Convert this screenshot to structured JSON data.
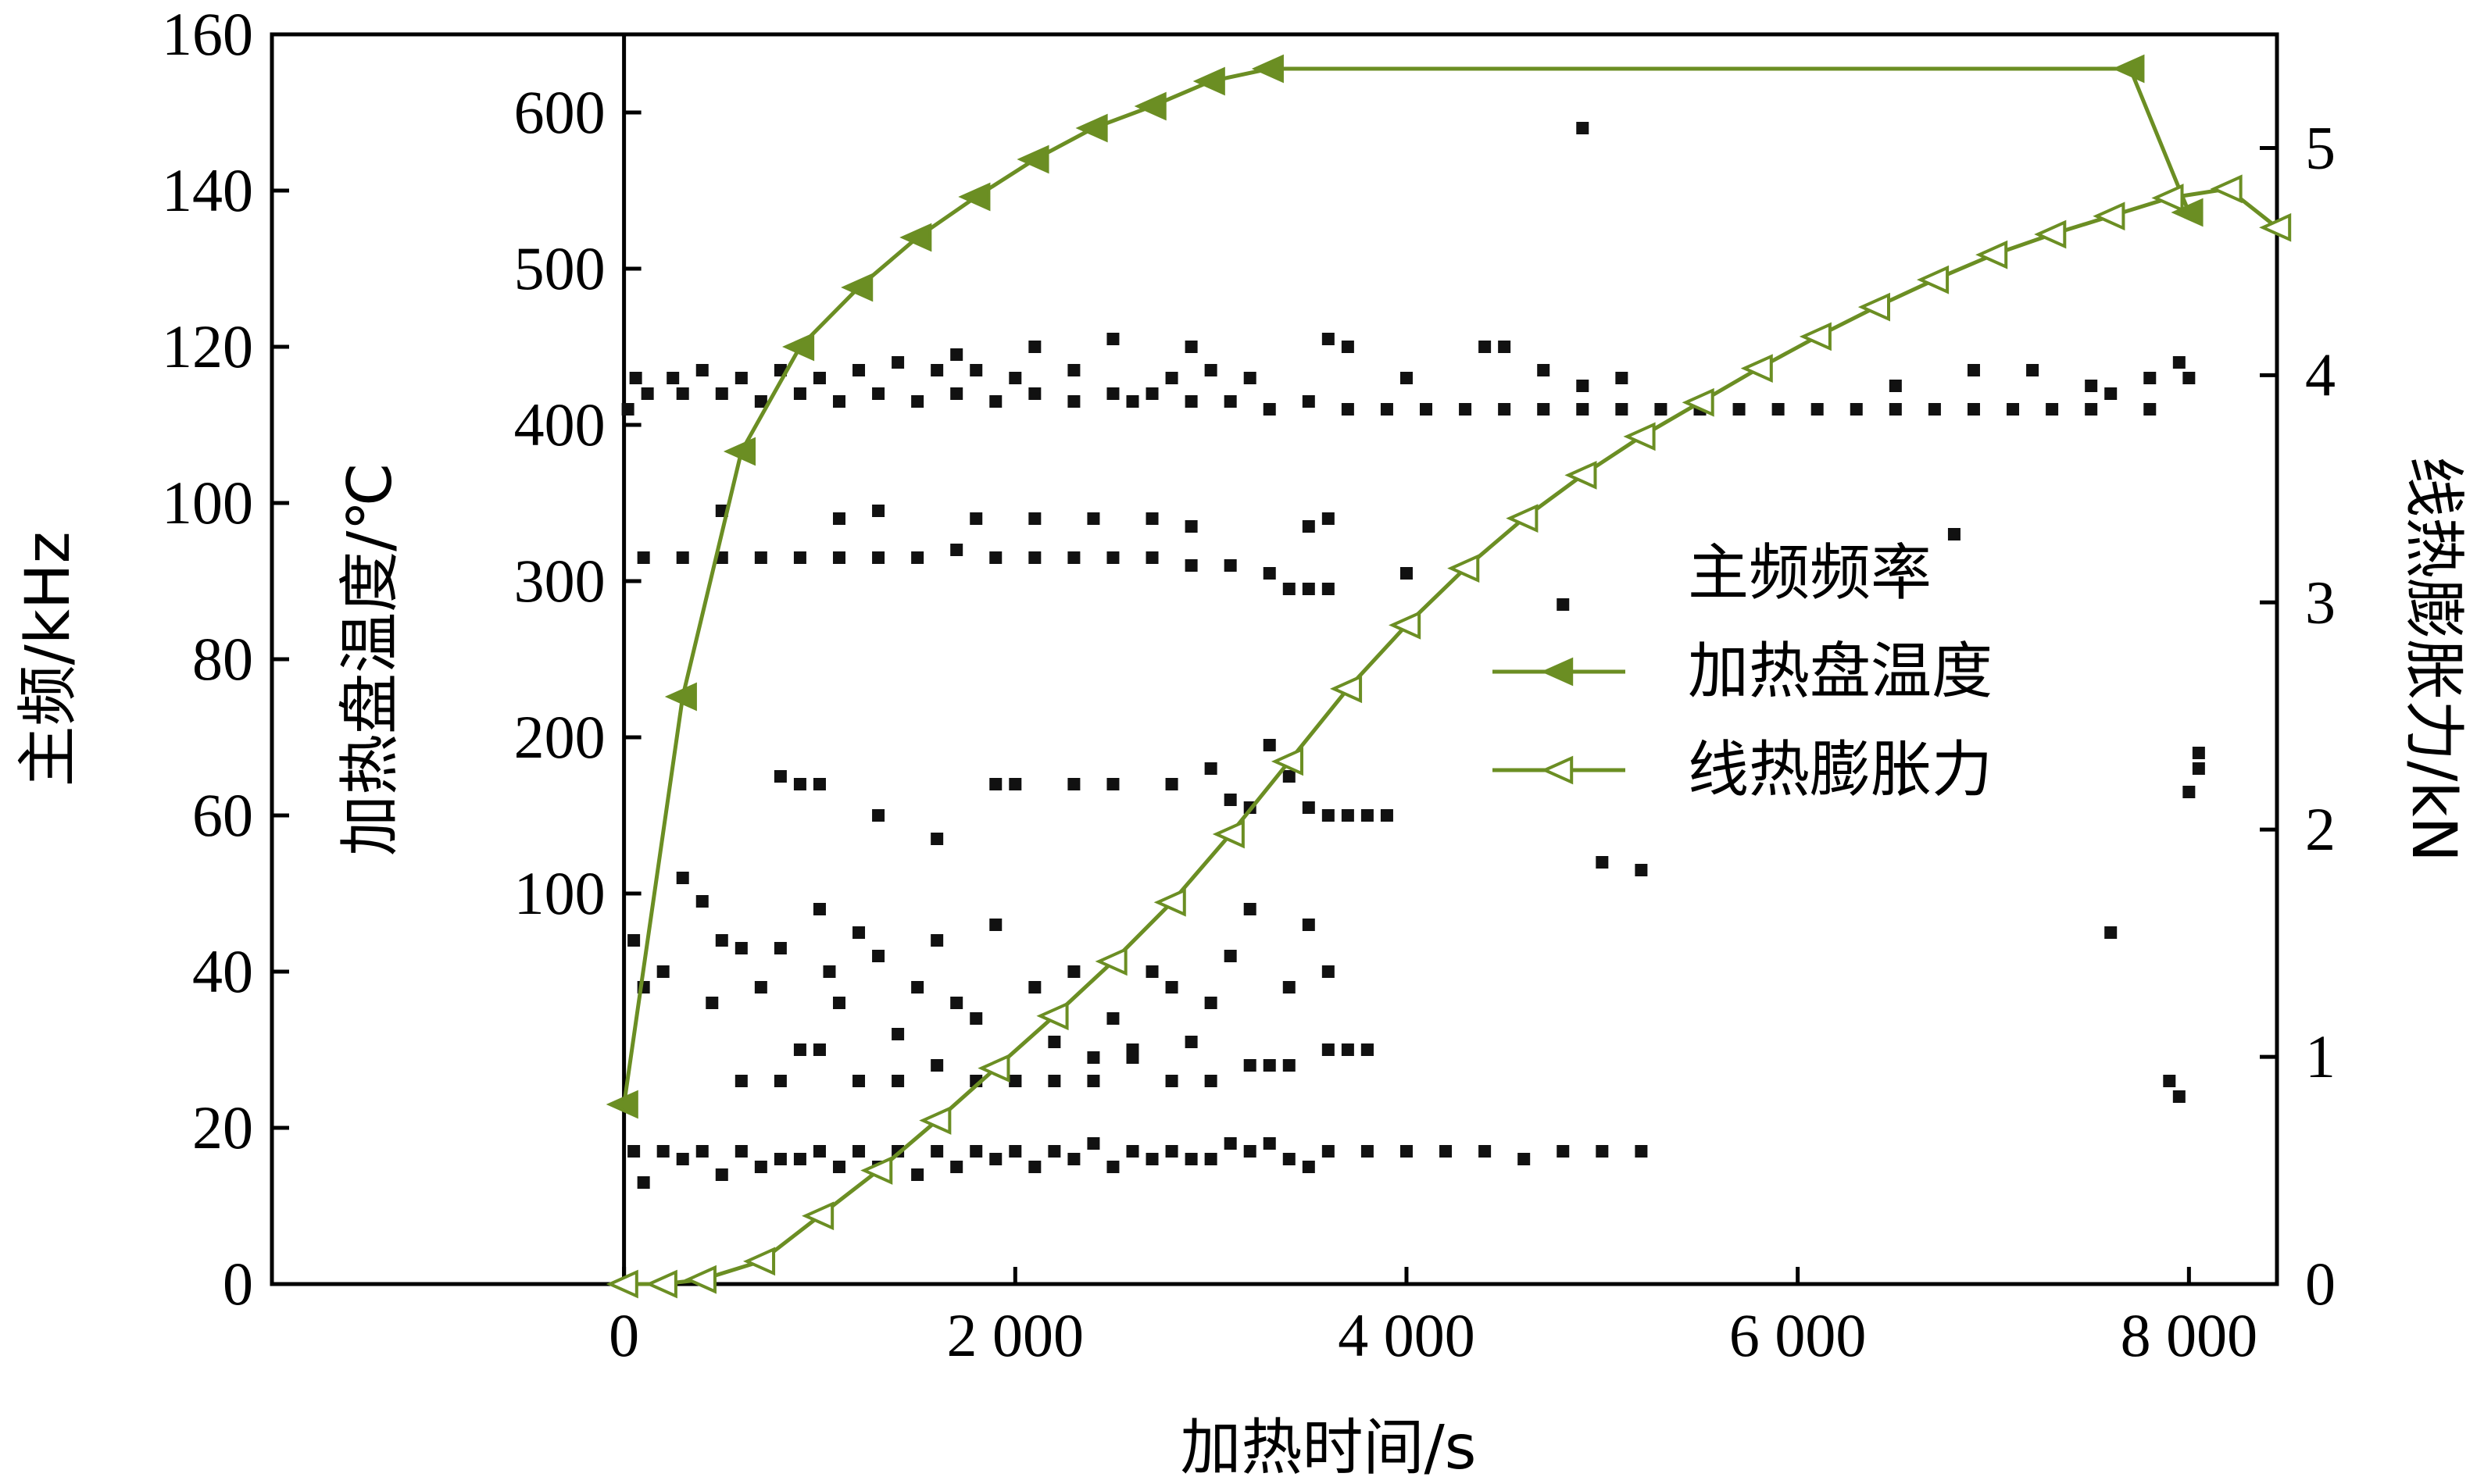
{
  "chart_data": {
    "type": "scatter",
    "title": "",
    "xlabel": "加热时间/s",
    "ylabel_left_outer": "主频/kHz",
    "ylabel_left_inner": "加热盘温度/℃",
    "ylabel_right": "线热膨胀力/kN",
    "x_range": [
      -1800,
      8450
    ],
    "y_left_outer_range": [
      0,
      160
    ],
    "y_left_inner_range": [
      -150,
      650
    ],
    "y_right_range": [
      0,
      5.5
    ],
    "x_ticks": [
      "0",
      "2 000",
      "4 000",
      "6 000",
      "8 000"
    ],
    "x_tick_values": [
      0,
      2000,
      4000,
      6000,
      8000
    ],
    "y_left_outer_ticks": [
      "0",
      "20",
      "40",
      "60",
      "80",
      "100",
      "120",
      "140",
      "160"
    ],
    "y_left_outer_tick_values": [
      0,
      20,
      40,
      60,
      80,
      100,
      120,
      140,
      160
    ],
    "y_left_inner_ticks": [
      "100",
      "200",
      "300",
      "400",
      "500",
      "600"
    ],
    "y_left_inner_tick_values": [
      100,
      200,
      300,
      400,
      500,
      600
    ],
    "y_right_ticks": [
      "0",
      "1",
      "2",
      "3",
      "4",
      "5"
    ],
    "y_right_tick_values": [
      0,
      1,
      2,
      3,
      4,
      5
    ],
    "grid": false,
    "legend_position": "center-right",
    "colors": {
      "series": "#6b8e23",
      "scatter": "#111111",
      "axis": "#000000"
    },
    "series": [
      {
        "name": "主频频率",
        "kind": "scatter",
        "axis": "left_outer",
        "points": [
          [
            20,
            112
          ],
          [
            120,
            114
          ],
          [
            300,
            114
          ],
          [
            500,
            114
          ],
          [
            700,
            113
          ],
          [
            900,
            114
          ],
          [
            1100,
            113
          ],
          [
            1300,
            114
          ],
          [
            1500,
            113
          ],
          [
            1700,
            114
          ],
          [
            1900,
            113
          ],
          [
            2100,
            114
          ],
          [
            2300,
            113
          ],
          [
            2500,
            114
          ],
          [
            2600,
            113
          ],
          [
            2700,
            114
          ],
          [
            2900,
            113
          ],
          [
            3100,
            113
          ],
          [
            3300,
            112
          ],
          [
            3500,
            113
          ],
          [
            3700,
            112
          ],
          [
            3900,
            112
          ],
          [
            4100,
            112
          ],
          [
            4300,
            112
          ],
          [
            4500,
            112
          ],
          [
            4700,
            112
          ],
          [
            4900,
            112
          ],
          [
            5100,
            112
          ],
          [
            5300,
            112
          ],
          [
            5500,
            112
          ],
          [
            5700,
            112
          ],
          [
            5900,
            112
          ],
          [
            6100,
            112
          ],
          [
            6300,
            112
          ],
          [
            6500,
            112
          ],
          [
            6700,
            112
          ],
          [
            6900,
            112
          ],
          [
            7100,
            112
          ],
          [
            7300,
            112
          ],
          [
            7500,
            112
          ],
          [
            7800,
            112
          ],
          [
            60,
            116
          ],
          [
            250,
            116
          ],
          [
            400,
            117
          ],
          [
            600,
            116
          ],
          [
            800,
            117
          ],
          [
            1000,
            116
          ],
          [
            1200,
            117
          ],
          [
            1400,
            118
          ],
          [
            1600,
            117
          ],
          [
            1700,
            119
          ],
          [
            1800,
            117
          ],
          [
            2000,
            116
          ],
          [
            2100,
            120
          ],
          [
            2300,
            117
          ],
          [
            2500,
            121
          ],
          [
            2800,
            116
          ],
          [
            2900,
            120
          ],
          [
            3000,
            117
          ],
          [
            3200,
            116
          ],
          [
            3600,
            121
          ],
          [
            3700,
            120
          ],
          [
            4000,
            116
          ],
          [
            4400,
            120
          ],
          [
            4500,
            120
          ],
          [
            4700,
            117
          ],
          [
            4900,
            115
          ],
          [
            5100,
            116
          ],
          [
            6500,
            115
          ],
          [
            6900,
            117
          ],
          [
            7200,
            117
          ],
          [
            7500,
            115
          ],
          [
            7600,
            114
          ],
          [
            7800,
            116
          ],
          [
            8000,
            116
          ],
          [
            100,
            93
          ],
          [
            300,
            93
          ],
          [
            500,
            93
          ],
          [
            700,
            93
          ],
          [
            900,
            93
          ],
          [
            1100,
            93
          ],
          [
            1300,
            93
          ],
          [
            1500,
            93
          ],
          [
            1700,
            94
          ],
          [
            1900,
            93
          ],
          [
            2100,
            93
          ],
          [
            2300,
            93
          ],
          [
            2500,
            93
          ],
          [
            2700,
            93
          ],
          [
            2900,
            92
          ],
          [
            3100,
            92
          ],
          [
            3300,
            91
          ],
          [
            3400,
            89
          ],
          [
            3500,
            89
          ],
          [
            3600,
            89
          ],
          [
            500,
            99
          ],
          [
            1100,
            98
          ],
          [
            1300,
            99
          ],
          [
            1800,
            98
          ],
          [
            2100,
            98
          ],
          [
            2400,
            98
          ],
          [
            2700,
            98
          ],
          [
            2900,
            97
          ],
          [
            3500,
            97
          ],
          [
            3600,
            98
          ],
          [
            4000,
            91
          ],
          [
            4800,
            87
          ],
          [
            6800,
            96
          ],
          [
            50,
            17
          ],
          [
            200,
            17
          ],
          [
            400,
            17
          ],
          [
            600,
            17
          ],
          [
            800,
            16
          ],
          [
            1000,
            17
          ],
          [
            1200,
            17
          ],
          [
            1400,
            17
          ],
          [
            1600,
            17
          ],
          [
            1800,
            17
          ],
          [
            2000,
            17
          ],
          [
            2200,
            17
          ],
          [
            2400,
            18
          ],
          [
            2600,
            17
          ],
          [
            2800,
            17
          ],
          [
            3000,
            16
          ],
          [
            3200,
            17
          ],
          [
            3400,
            16
          ],
          [
            3600,
            17
          ],
          [
            3800,
            17
          ],
          [
            4000,
            17
          ],
          [
            4200,
            17
          ],
          [
            4400,
            17
          ],
          [
            4600,
            16
          ],
          [
            4800,
            17
          ],
          [
            5000,
            17
          ],
          [
            5200,
            17
          ],
          [
            100,
            13
          ],
          [
            300,
            16
          ],
          [
            500,
            14
          ],
          [
            700,
            15
          ],
          [
            900,
            16
          ],
          [
            1100,
            15
          ],
          [
            1300,
            15
          ],
          [
            1500,
            14
          ],
          [
            1700,
            15
          ],
          [
            1900,
            16
          ],
          [
            2100,
            15
          ],
          [
            2300,
            16
          ],
          [
            2500,
            15
          ],
          [
            2700,
            16
          ],
          [
            2900,
            16
          ],
          [
            3100,
            18
          ],
          [
            3300,
            18
          ],
          [
            3500,
            15
          ],
          [
            50,
            44
          ],
          [
            100,
            38
          ],
          [
            200,
            40
          ],
          [
            300,
            52
          ],
          [
            400,
            49
          ],
          [
            450,
            36
          ],
          [
            500,
            44
          ],
          [
            600,
            43
          ],
          [
            700,
            38
          ],
          [
            800,
            43
          ],
          [
            900,
            30
          ],
          [
            1000,
            48
          ],
          [
            1050,
            40
          ],
          [
            1100,
            36
          ],
          [
            1200,
            45
          ],
          [
            1300,
            42
          ],
          [
            1400,
            32
          ],
          [
            1500,
            38
          ],
          [
            1600,
            44
          ],
          [
            1700,
            36
          ],
          [
            1800,
            34
          ],
          [
            1900,
            46
          ],
          [
            2000,
            26
          ],
          [
            2100,
            38
          ],
          [
            2200,
            31
          ],
          [
            2300,
            40
          ],
          [
            2400,
            29
          ],
          [
            2500,
            34
          ],
          [
            2600,
            30
          ],
          [
            2700,
            40
          ],
          [
            2800,
            38
          ],
          [
            2900,
            31
          ],
          [
            3000,
            36
          ],
          [
            3100,
            42
          ],
          [
            3200,
            48
          ],
          [
            3300,
            28
          ],
          [
            3400,
            38
          ],
          [
            3500,
            46
          ],
          [
            3600,
            40
          ],
          [
            3700,
            30
          ],
          [
            3800,
            30
          ],
          [
            800,
            65
          ],
          [
            900,
            64
          ],
          [
            1000,
            64
          ],
          [
            1300,
            60
          ],
          [
            1600,
            57
          ],
          [
            1900,
            64
          ],
          [
            2000,
            64
          ],
          [
            2300,
            64
          ],
          [
            2500,
            64
          ],
          [
            2800,
            64
          ],
          [
            3000,
            66
          ],
          [
            3100,
            62
          ],
          [
            3200,
            61
          ],
          [
            3300,
            69
          ],
          [
            3400,
            65
          ],
          [
            3500,
            61
          ],
          [
            3600,
            60
          ],
          [
            3700,
            60
          ],
          [
            3800,
            60
          ],
          [
            3900,
            60
          ],
          [
            5000,
            54
          ],
          [
            5200,
            53
          ],
          [
            8000,
            63
          ],
          [
            8050,
            66
          ],
          [
            600,
            26
          ],
          [
            800,
            26
          ],
          [
            1000,
            30
          ],
          [
            1200,
            26
          ],
          [
            1400,
            26
          ],
          [
            1600,
            28
          ],
          [
            1800,
            26
          ],
          [
            2000,
            26
          ],
          [
            2200,
            26
          ],
          [
            2400,
            26
          ],
          [
            2600,
            29
          ],
          [
            2800,
            26
          ],
          [
            3000,
            26
          ],
          [
            3200,
            28
          ],
          [
            3400,
            28
          ],
          [
            3600,
            30
          ],
          [
            3800,
            30
          ],
          [
            7600,
            45
          ],
          [
            7900,
            26
          ],
          [
            7950,
            24
          ],
          [
            8050,
            68
          ],
          [
            4900,
            148
          ],
          [
            7950,
            118
          ]
        ]
      },
      {
        "name": "加热盘温度",
        "kind": "line",
        "marker": "filled-triangle-left",
        "axis": "left_inner",
        "x": [
          0,
          300,
          600,
          900,
          1200,
          1500,
          1800,
          2100,
          2400,
          2700,
          3000,
          3300,
          7700,
          8000
        ],
        "y": [
          -35,
          226,
          383,
          450,
          488,
          520,
          546,
          570,
          590,
          604,
          620,
          628,
          628,
          536
        ]
      },
      {
        "name": "线热膨胀力",
        "kind": "line",
        "marker": "hollow-triangle-left",
        "axis": "right",
        "x": [
          0,
          200,
          400,
          700,
          1000,
          1300,
          1600,
          1900,
          2200,
          2500,
          2800,
          3100,
          3400,
          3700,
          4000,
          4300,
          4600,
          4900,
          5200,
          5500,
          5800,
          6100,
          6400,
          6700,
          7000,
          7300,
          7600,
          7900,
          8200,
          8450
        ],
        "y": [
          0.0,
          0.0,
          0.02,
          0.1,
          0.3,
          0.5,
          0.72,
          0.95,
          1.18,
          1.42,
          1.68,
          1.98,
          2.3,
          2.62,
          2.9,
          3.15,
          3.37,
          3.56,
          3.73,
          3.88,
          4.03,
          4.17,
          4.3,
          4.42,
          4.53,
          4.62,
          4.7,
          4.78,
          4.82,
          4.65
        ]
      }
    ]
  }
}
